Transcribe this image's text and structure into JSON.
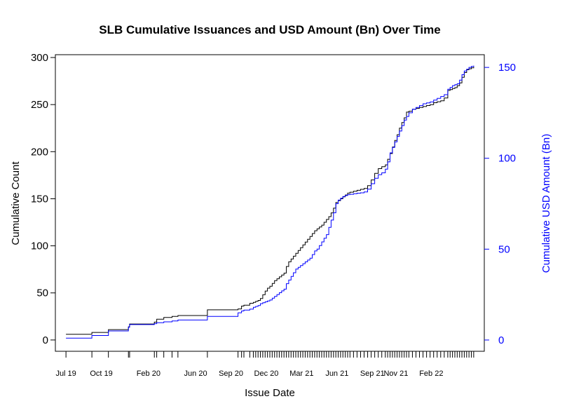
{
  "chart_data": {
    "type": "line",
    "title": "SLB Cumulative Issuances and USD Amount (Bn) Over Time",
    "xlabel": "Issue Date",
    "ylabel_left": "Cumulative Count",
    "ylabel_right": "Cumulative USD Amount (Bn)",
    "colors": {
      "count": "#000000",
      "amount": "#0000ff",
      "axis": "#000000",
      "right_axis": "#0000ff"
    },
    "x_ticks": [
      "Jul 19",
      "Oct 19",
      "Feb 20",
      "Jun 20",
      "Sep 20",
      "Dec 20",
      "Mar 21",
      "Jun 21",
      "Sep 21",
      "Nov 21",
      "Feb 22"
    ],
    "x_tick_months": [
      0,
      3,
      7,
      11,
      14,
      17,
      20,
      23,
      26,
      28,
      31
    ],
    "x_range_months": [
      -0.9,
      35.5
    ],
    "ylim_left": [
      -12,
      303
    ],
    "yticks_left": [
      0,
      50,
      100,
      150,
      200,
      250,
      300
    ],
    "ylim_right": [
      -6.2,
      157
    ],
    "yticks_right": [
      0,
      50,
      100,
      150
    ],
    "rug_months": [
      0,
      2.2,
      3.6,
      5.3,
      5.4,
      7.5,
      7.7,
      8.3,
      9.0,
      9.5,
      12.0,
      14.6,
      14.9,
      15.1,
      15.6,
      15.9,
      16.1,
      16.3,
      16.5,
      16.7,
      16.9,
      17.1,
      17.3,
      17.5,
      17.7,
      17.9,
      18.1,
      18.3,
      18.5,
      18.7,
      18.9,
      19.1,
      19.3,
      19.5,
      19.7,
      19.9,
      20.1,
      20.3,
      20.5,
      20.7,
      20.9,
      21.1,
      21.3,
      21.5,
      21.7,
      21.9,
      22.1,
      22.3,
      22.5,
      22.7,
      22.9,
      23.1,
      23.3,
      23.5,
      23.7,
      23.9,
      24.1,
      24.4,
      24.7,
      25.0,
      25.3,
      25.6,
      25.9,
      26.2,
      26.5,
      26.8,
      27.1,
      27.3,
      27.5,
      27.7,
      27.9,
      28.1,
      28.3,
      28.5,
      28.7,
      28.9,
      29.1,
      29.4,
      29.7,
      30.0,
      30.3,
      30.6,
      30.9,
      31.2,
      31.5,
      31.8,
      32.1,
      32.4,
      32.6,
      32.8,
      33.0,
      33.2,
      33.4,
      33.6,
      33.8,
      34.0,
      34.2,
      34.4,
      34.6
    ],
    "series": [
      {
        "name": "Cumulative Count",
        "axis": "left",
        "points": [
          [
            0,
            6
          ],
          [
            2.2,
            8
          ],
          [
            3.6,
            11
          ],
          [
            5.3,
            14
          ],
          [
            5.4,
            17
          ],
          [
            7.5,
            19
          ],
          [
            7.7,
            22
          ],
          [
            8.3,
            24
          ],
          [
            9.0,
            25
          ],
          [
            9.5,
            26
          ],
          [
            12.0,
            32
          ],
          [
            14.6,
            33
          ],
          [
            14.9,
            36
          ],
          [
            15.1,
            37
          ],
          [
            15.6,
            39
          ],
          [
            15.9,
            40
          ],
          [
            16.1,
            41
          ],
          [
            16.3,
            42
          ],
          [
            16.5,
            44
          ],
          [
            16.7,
            48
          ],
          [
            16.9,
            52
          ],
          [
            17.1,
            55
          ],
          [
            17.3,
            57
          ],
          [
            17.5,
            60
          ],
          [
            17.7,
            63
          ],
          [
            17.9,
            65
          ],
          [
            18.1,
            67
          ],
          [
            18.3,
            69
          ],
          [
            18.5,
            71
          ],
          [
            18.7,
            78
          ],
          [
            18.9,
            83
          ],
          [
            19.1,
            86
          ],
          [
            19.3,
            89
          ],
          [
            19.5,
            92
          ],
          [
            19.7,
            95
          ],
          [
            19.9,
            98
          ],
          [
            20.1,
            101
          ],
          [
            20.3,
            104
          ],
          [
            20.5,
            107
          ],
          [
            20.7,
            110
          ],
          [
            20.9,
            113
          ],
          [
            21.1,
            116
          ],
          [
            21.3,
            118
          ],
          [
            21.5,
            120
          ],
          [
            21.7,
            122
          ],
          [
            21.9,
            125
          ],
          [
            22.1,
            128
          ],
          [
            22.3,
            131
          ],
          [
            22.5,
            135
          ],
          [
            22.7,
            140
          ],
          [
            22.9,
            146
          ],
          [
            23.1,
            148
          ],
          [
            23.3,
            150
          ],
          [
            23.5,
            152
          ],
          [
            23.7,
            154
          ],
          [
            23.9,
            156
          ],
          [
            24.1,
            157
          ],
          [
            24.4,
            158
          ],
          [
            24.7,
            159
          ],
          [
            25.0,
            160
          ],
          [
            25.3,
            161
          ],
          [
            25.6,
            164
          ],
          [
            25.9,
            170
          ],
          [
            26.2,
            177
          ],
          [
            26.5,
            182
          ],
          [
            26.8,
            184
          ],
          [
            27.1,
            186
          ],
          [
            27.3,
            192
          ],
          [
            27.5,
            198
          ],
          [
            27.7,
            205
          ],
          [
            27.9,
            212
          ],
          [
            28.1,
            218
          ],
          [
            28.3,
            225
          ],
          [
            28.5,
            231
          ],
          [
            28.7,
            236
          ],
          [
            28.9,
            242
          ],
          [
            29.1,
            243
          ],
          [
            29.4,
            245
          ],
          [
            29.7,
            246
          ],
          [
            30.0,
            247
          ],
          [
            30.3,
            248
          ],
          [
            30.6,
            249
          ],
          [
            30.9,
            250
          ],
          [
            31.2,
            252
          ],
          [
            31.5,
            253
          ],
          [
            31.8,
            254
          ],
          [
            32.1,
            257
          ],
          [
            32.4,
            265
          ],
          [
            32.6,
            266
          ],
          [
            32.8,
            267
          ],
          [
            33.0,
            268
          ],
          [
            33.2,
            270
          ],
          [
            33.4,
            273
          ],
          [
            33.6,
            279
          ],
          [
            33.8,
            284
          ],
          [
            34.0,
            287
          ],
          [
            34.2,
            288
          ],
          [
            34.4,
            289
          ],
          [
            34.6,
            290
          ]
        ]
      },
      {
        "name": "Cumulative USD Amount (Bn)",
        "axis": "right",
        "points": [
          [
            0,
            1.0
          ],
          [
            2.2,
            2.5
          ],
          [
            3.6,
            5.0
          ],
          [
            5.3,
            7.0
          ],
          [
            5.4,
            8.5
          ],
          [
            7.5,
            9.0
          ],
          [
            7.7,
            9.5
          ],
          [
            8.3,
            10.0
          ],
          [
            9.0,
            10.5
          ],
          [
            9.5,
            11.0
          ],
          [
            12.0,
            13.0
          ],
          [
            14.6,
            15.0
          ],
          [
            14.9,
            16.0
          ],
          [
            15.1,
            16.5
          ],
          [
            15.6,
            17.0
          ],
          [
            15.9,
            18.0
          ],
          [
            16.1,
            18.5
          ],
          [
            16.3,
            19.0
          ],
          [
            16.5,
            20.0
          ],
          [
            16.7,
            20.5
          ],
          [
            16.9,
            21.0
          ],
          [
            17.1,
            21.5
          ],
          [
            17.3,
            22.0
          ],
          [
            17.5,
            23.0
          ],
          [
            17.7,
            24.0
          ],
          [
            17.9,
            25.0
          ],
          [
            18.1,
            26.0
          ],
          [
            18.3,
            27.0
          ],
          [
            18.5,
            28.0
          ],
          [
            18.7,
            31.0
          ],
          [
            18.9,
            33.0
          ],
          [
            19.1,
            35.0
          ],
          [
            19.3,
            37.0
          ],
          [
            19.5,
            39.0
          ],
          [
            19.7,
            40.0
          ],
          [
            19.9,
            41.0
          ],
          [
            20.1,
            42.0
          ],
          [
            20.3,
            43.0
          ],
          [
            20.5,
            44.0
          ],
          [
            20.7,
            45.0
          ],
          [
            20.9,
            47.0
          ],
          [
            21.1,
            49.0
          ],
          [
            21.3,
            50.0
          ],
          [
            21.5,
            52.0
          ],
          [
            21.7,
            54.0
          ],
          [
            21.9,
            56.0
          ],
          [
            22.1,
            58.0
          ],
          [
            22.3,
            62.0
          ],
          [
            22.5,
            66.0
          ],
          [
            22.7,
            70.0
          ],
          [
            22.9,
            75.0
          ],
          [
            23.1,
            77.0
          ],
          [
            23.3,
            78.0
          ],
          [
            23.5,
            79.0
          ],
          [
            23.7,
            79.5
          ],
          [
            23.9,
            80.0
          ],
          [
            24.1,
            80.2
          ],
          [
            24.4,
            80.5
          ],
          [
            24.7,
            80.8
          ],
          [
            25.0,
            81.0
          ],
          [
            25.3,
            81.5
          ],
          [
            25.6,
            83.0
          ],
          [
            25.9,
            86.0
          ],
          [
            26.2,
            89.0
          ],
          [
            26.5,
            91.0
          ],
          [
            26.8,
            92.0
          ],
          [
            27.1,
            94.0
          ],
          [
            27.3,
            98.0
          ],
          [
            27.5,
            103.0
          ],
          [
            27.7,
            106.0
          ],
          [
            27.9,
            109.0
          ],
          [
            28.1,
            112.0
          ],
          [
            28.3,
            115.0
          ],
          [
            28.5,
            118.0
          ],
          [
            28.7,
            121.0
          ],
          [
            28.9,
            123.0
          ],
          [
            29.1,
            125.0
          ],
          [
            29.4,
            127.0
          ],
          [
            29.7,
            128.0
          ],
          [
            30.0,
            129.0
          ],
          [
            30.3,
            130.0
          ],
          [
            30.6,
            130.5
          ],
          [
            30.9,
            131.0
          ],
          [
            31.2,
            132.0
          ],
          [
            31.5,
            133.0
          ],
          [
            31.8,
            134.0
          ],
          [
            32.1,
            135.0
          ],
          [
            32.4,
            138.0
          ],
          [
            32.6,
            139.0
          ],
          [
            32.8,
            140.0
          ],
          [
            33.0,
            140.5
          ],
          [
            33.2,
            141.0
          ],
          [
            33.4,
            143.0
          ],
          [
            33.6,
            146.0
          ],
          [
            33.8,
            148.0
          ],
          [
            34.0,
            149.0
          ],
          [
            34.2,
            150.0
          ],
          [
            34.4,
            150.5
          ],
          [
            34.6,
            151.0
          ]
        ]
      }
    ],
    "grid": false,
    "legend": "none"
  }
}
